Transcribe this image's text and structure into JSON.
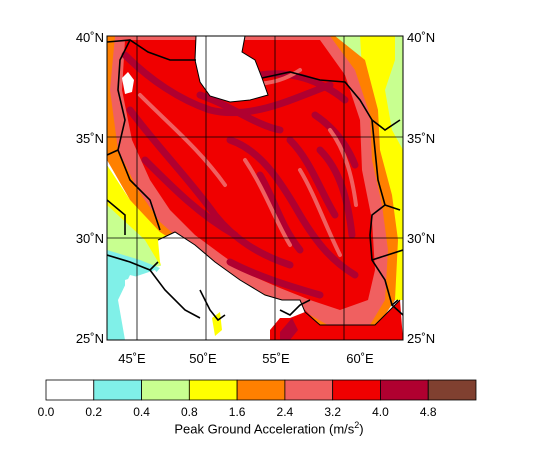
{
  "map": {
    "lat_labels_left": [
      "40˚N",
      "35˚N",
      "30˚N",
      "25˚N"
    ],
    "lat_labels_right": [
      "40˚N",
      "35˚N",
      "30˚N",
      "25˚N"
    ],
    "lon_labels": [
      "45˚E",
      "50˚E",
      "55˚E",
      "60˚E"
    ]
  },
  "legend": {
    "title_prefix": "Peak Ground Acceleration (m/s",
    "title_sup": "2",
    "title_suffix": ")",
    "breaks": [
      "0.0",
      "0.2",
      "0.4",
      "0.8",
      "1.6",
      "2.4",
      "3.2",
      "4.0",
      "4.8"
    ],
    "colors": [
      "#ffffff",
      "#80f0e8",
      "#c8ff90",
      "#ffff00",
      "#ff8000",
      "#f06060",
      "#f00000",
      "#b00030",
      "#804030"
    ]
  }
}
